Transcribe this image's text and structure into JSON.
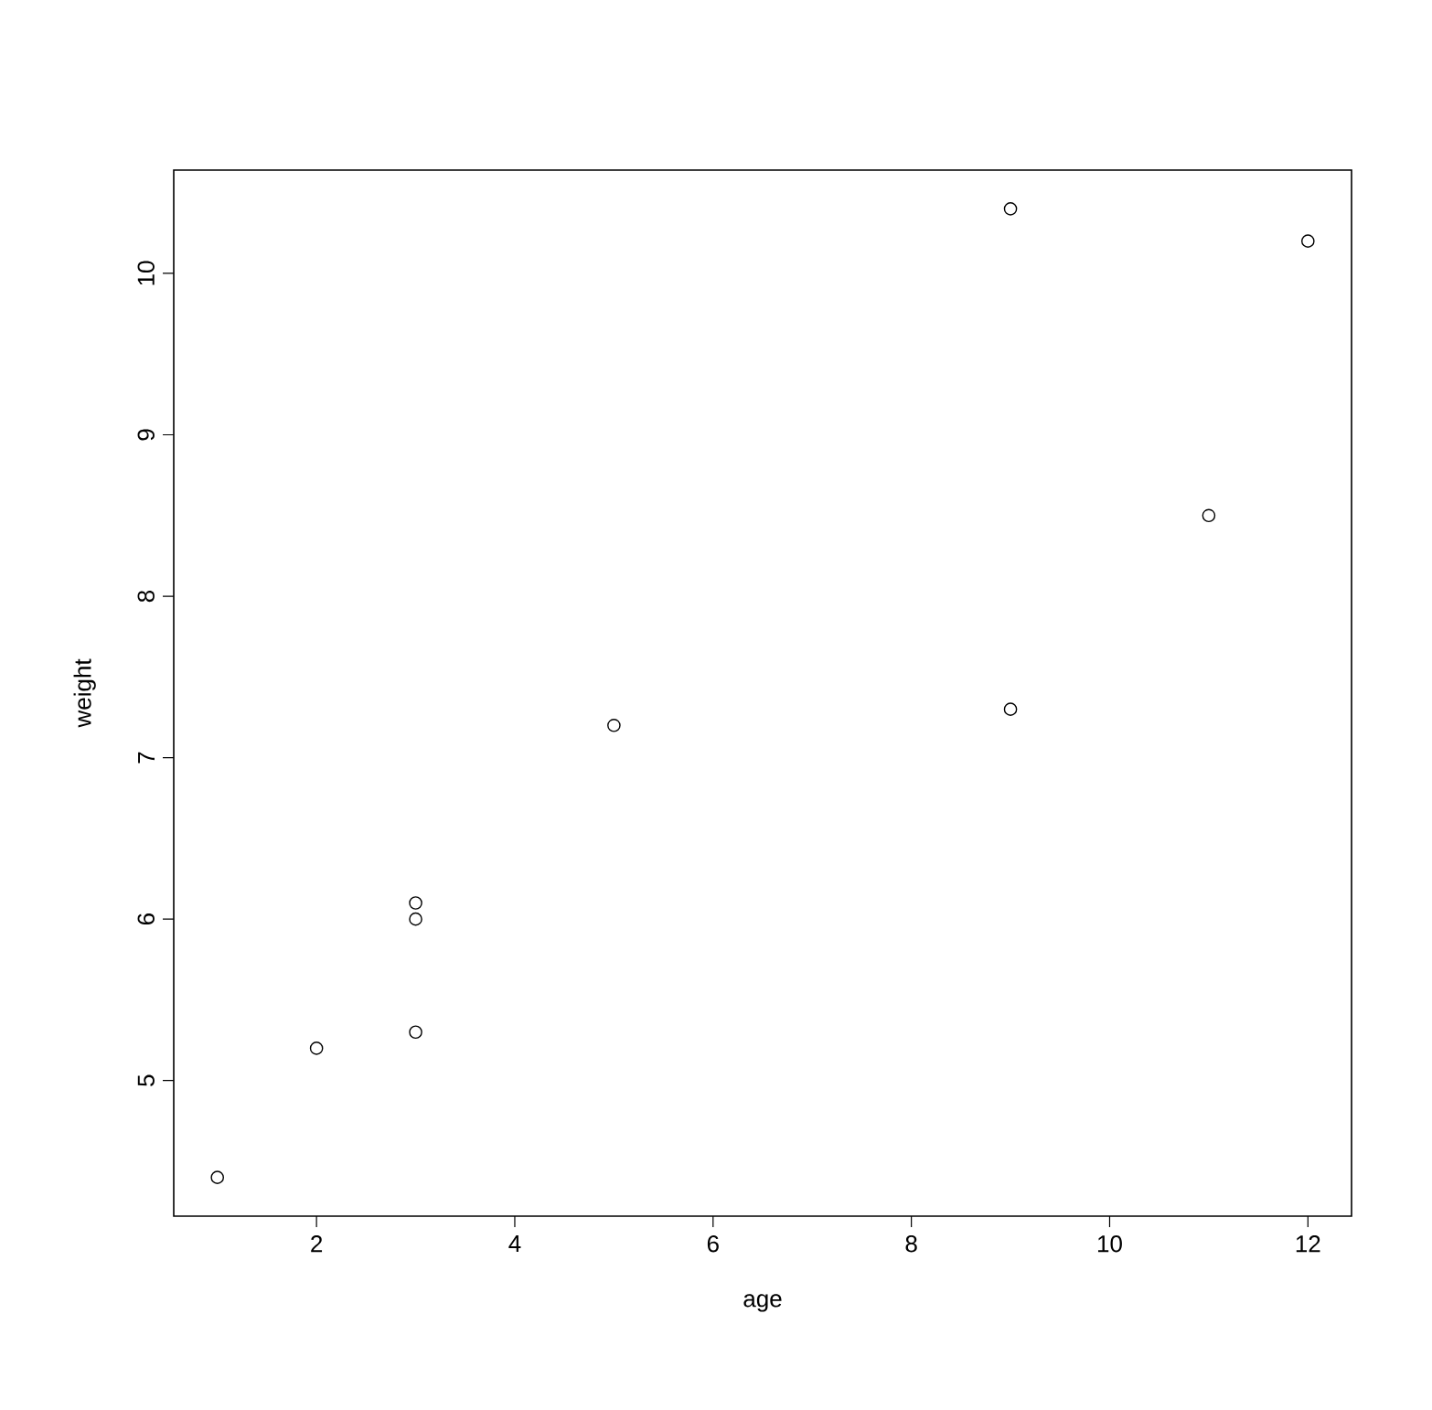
{
  "chart_data": {
    "type": "scatter",
    "xlabel": "age",
    "ylabel": "weight",
    "x": [
      1,
      3,
      5,
      2,
      11,
      9,
      3,
      9,
      12,
      3
    ],
    "values": [
      4.4,
      5.3,
      7.2,
      5.2,
      8.5,
      7.3,
      6.0,
      10.4,
      10.2,
      6.1
    ],
    "color": "#000000",
    "marker": "circle",
    "xlim": [
      0.56,
      12.44
    ],
    "ylim": [
      4.16,
      10.64
    ],
    "xticks": [
      2,
      4,
      6,
      8,
      10,
      12
    ],
    "yticks": [
      5,
      6,
      7,
      8,
      9,
      10
    ]
  }
}
